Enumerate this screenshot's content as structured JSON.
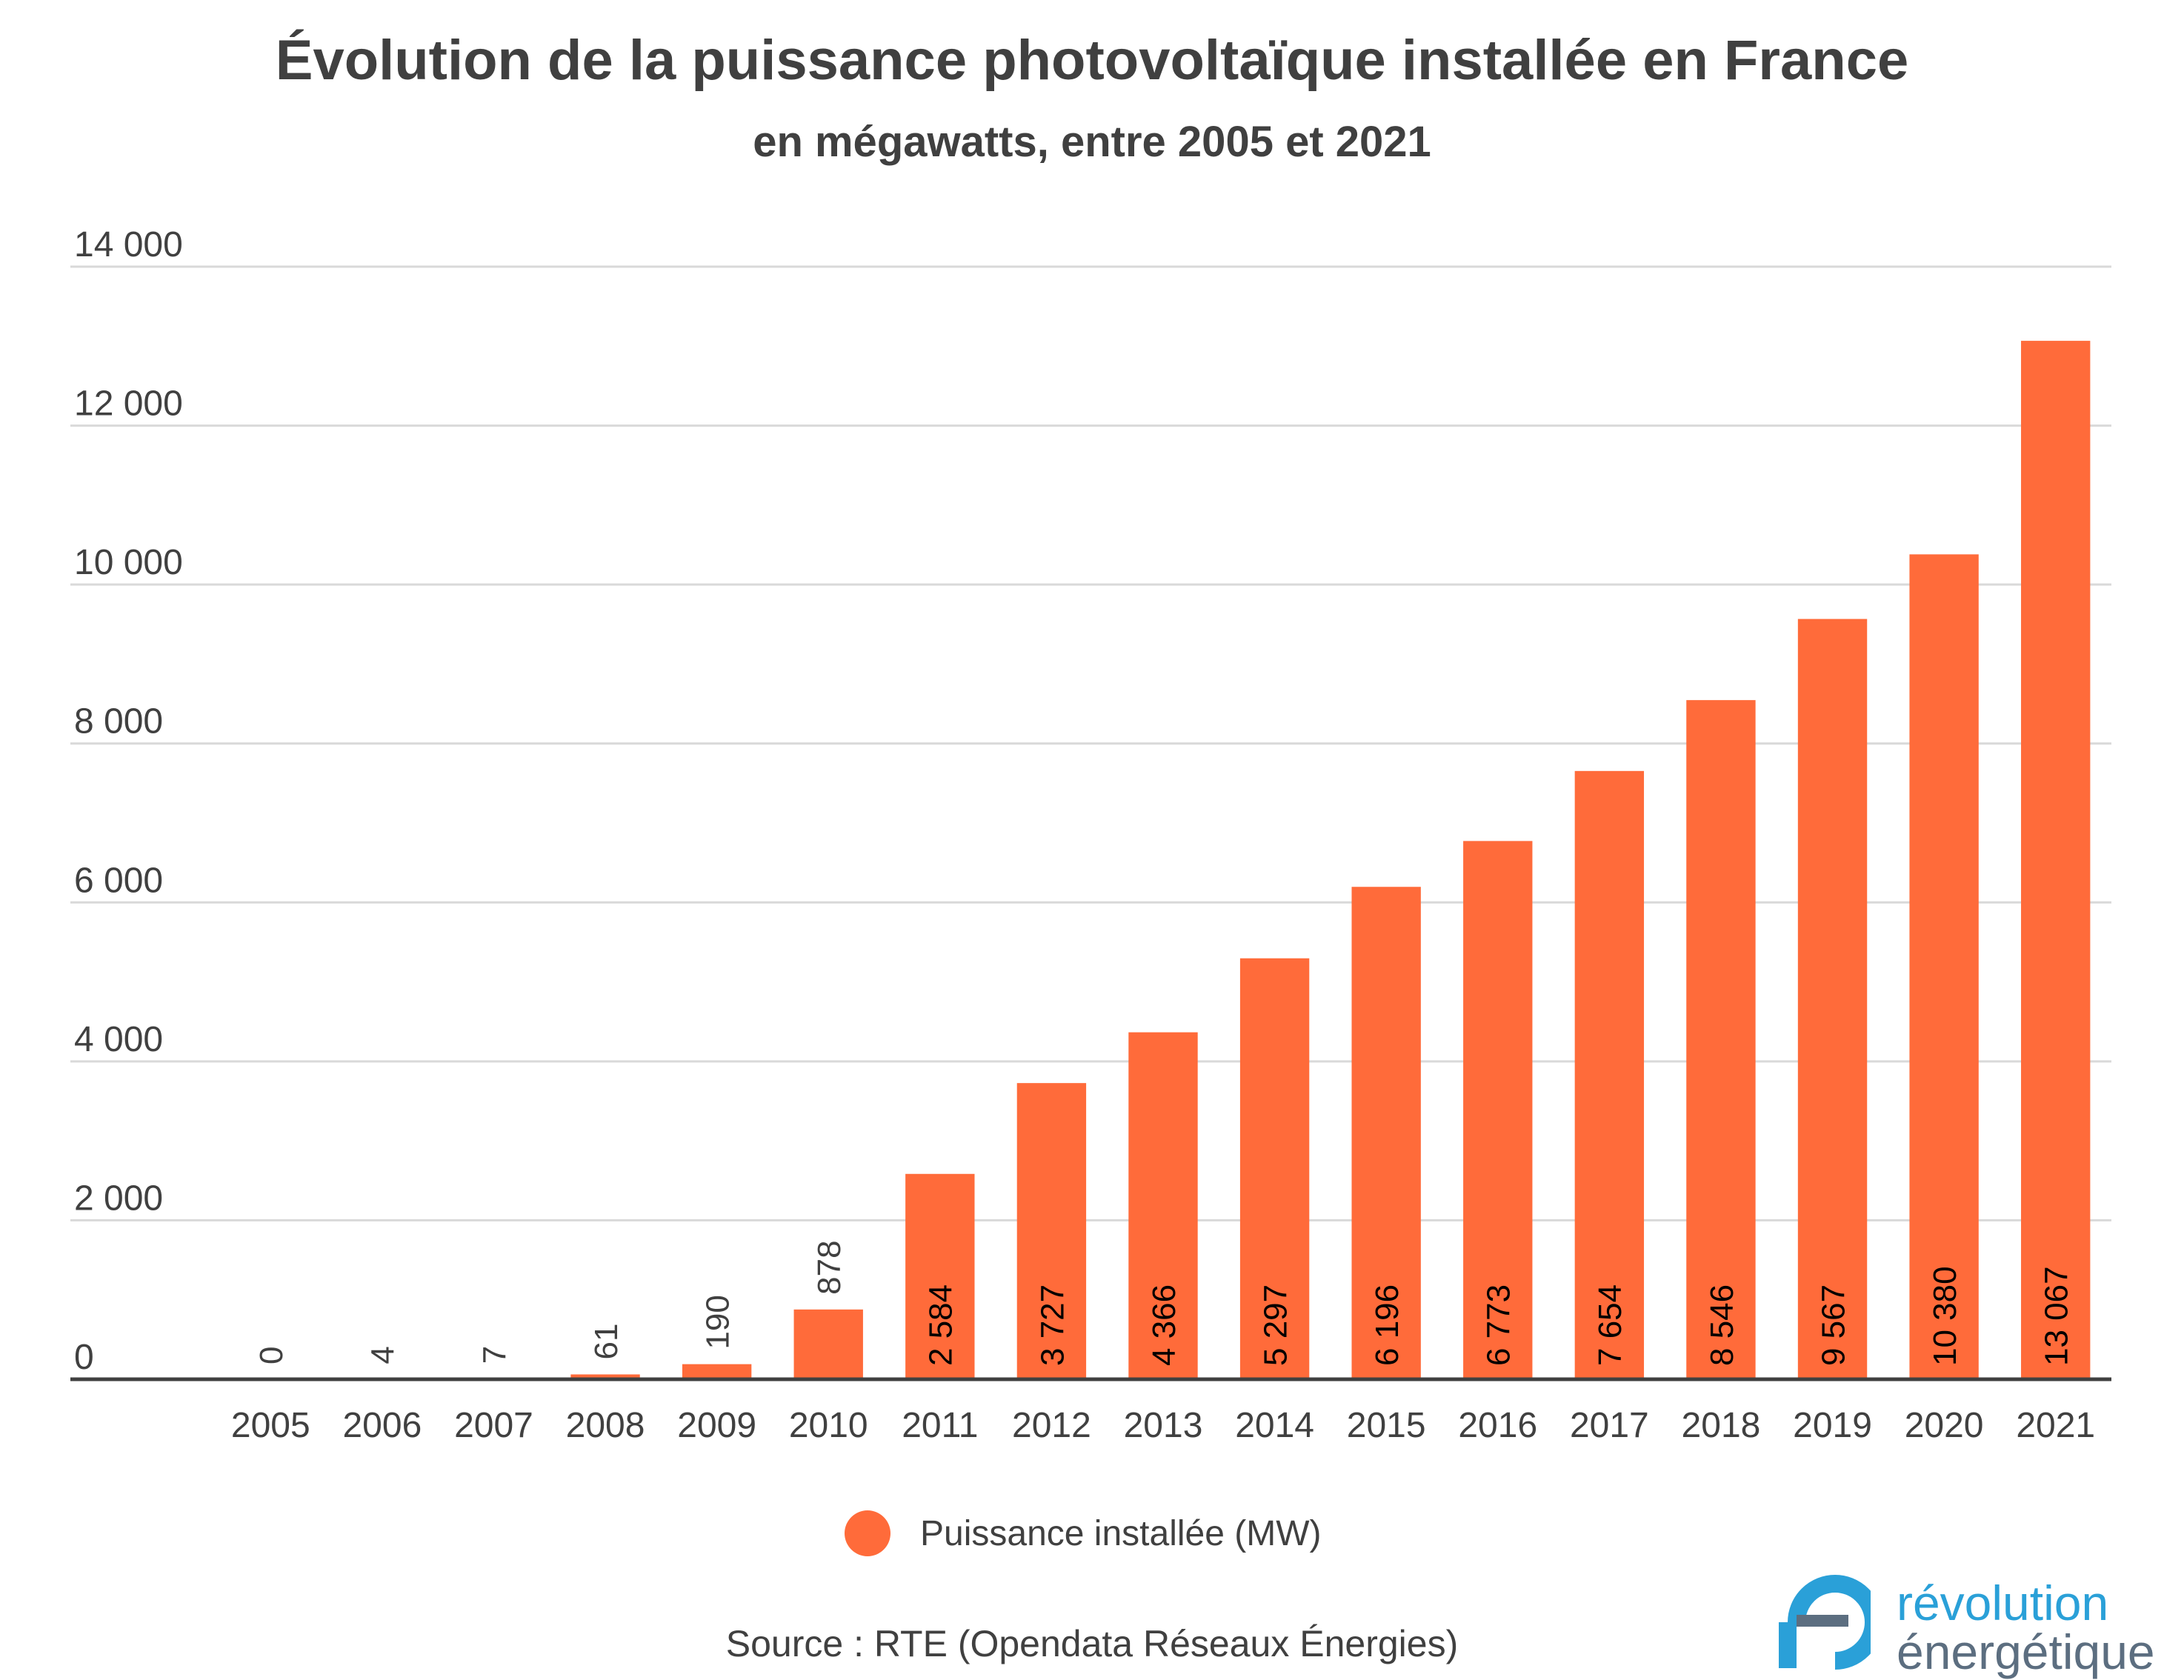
{
  "chart_data": {
    "type": "bar",
    "title": "Évolution de la puissance photovoltaïque installée en France",
    "subtitle": "en mégawatts, entre 2005 et 2021",
    "categories": [
      "2005",
      "2006",
      "2007",
      "2008",
      "2009",
      "2010",
      "2011",
      "2012",
      "2013",
      "2014",
      "2015",
      "2016",
      "2017",
      "2018",
      "2019",
      "2020",
      "2021"
    ],
    "values": [
      0,
      4,
      7,
      61,
      190,
      878,
      2584,
      3727,
      4366,
      5297,
      6196,
      6773,
      7654,
      8546,
      9567,
      10380,
      13067
    ],
    "value_labels": [
      "0",
      "4",
      "7",
      "61",
      "190",
      "878",
      "2 584",
      "3 727",
      "4 366",
      "5 297",
      "6 196",
      "6 773",
      "7 654",
      "8 546",
      "9 567",
      "10 380",
      "13 067"
    ],
    "series_name": "Puissance installée (MW)",
    "ylim": [
      0,
      14000
    ],
    "yticks": [
      0,
      2000,
      4000,
      6000,
      8000,
      10000,
      12000,
      14000
    ],
    "ytick_labels": [
      "0",
      "2 000",
      "4 000",
      "6 000",
      "8 000",
      "10 000",
      "12 000",
      "14 000"
    ],
    "grid": true,
    "legend_position": "bottom-center",
    "bar_color": "#ff6b3a",
    "source": "Source : RTE (Opendata Réseaux Énergies)"
  },
  "logo": {
    "line1": "révolution",
    "line2": "énergétique",
    "colors": {
      "primary": "#2aa0d8",
      "secondary": "#5c6e80"
    }
  }
}
